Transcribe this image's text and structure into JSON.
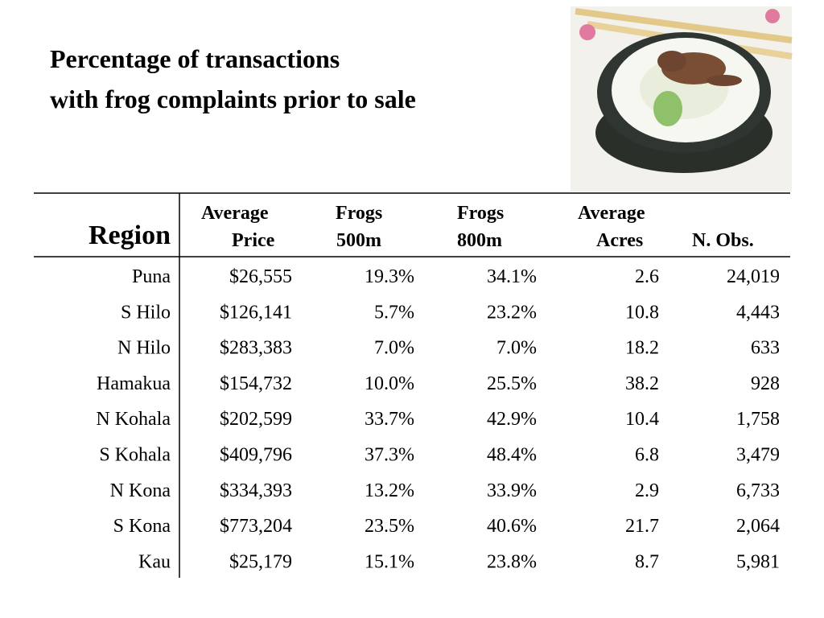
{
  "title": {
    "lines": [
      "Percentage of transactions",
      "with frog complaints prior to sale"
    ]
  },
  "table": {
    "headers": [
      [
        "Region"
      ],
      [
        "Average",
        "Price"
      ],
      [
        "Frogs",
        "500m"
      ],
      [
        "Frogs",
        "800m"
      ],
      [
        "Average",
        "Acres"
      ],
      [
        "N. Obs."
      ]
    ],
    "rows": [
      [
        "Puna",
        "$26,555",
        "19.3%",
        "34.1%",
        "2.6",
        "24,019"
      ],
      [
        "S Hilo",
        "$126,141",
        "5.7%",
        "23.2%",
        "10.8",
        "4,443"
      ],
      [
        "N Hilo",
        "$283,383",
        "7.0%",
        "7.0%",
        "18.2",
        "633"
      ],
      [
        "Hamakua",
        "$154,732",
        "10.0%",
        "25.5%",
        "38.2",
        "928"
      ],
      [
        "N Kohala",
        "$202,599",
        "33.7%",
        "42.9%",
        "10.4",
        "1,758"
      ],
      [
        "S Kohala",
        "$409,796",
        "37.3%",
        "48.4%",
        "6.8",
        "3,479"
      ],
      [
        "N Kona",
        "$334,393",
        "13.2%",
        "33.9%",
        "2.9",
        "6,733"
      ],
      [
        "S Kona",
        "$773,204",
        "23.5%",
        "40.6%",
        "21.7",
        "2,064"
      ],
      [
        "Kau",
        "$25,179",
        "15.1%",
        "23.8%",
        "8.7",
        "5,981"
      ]
    ]
  }
}
